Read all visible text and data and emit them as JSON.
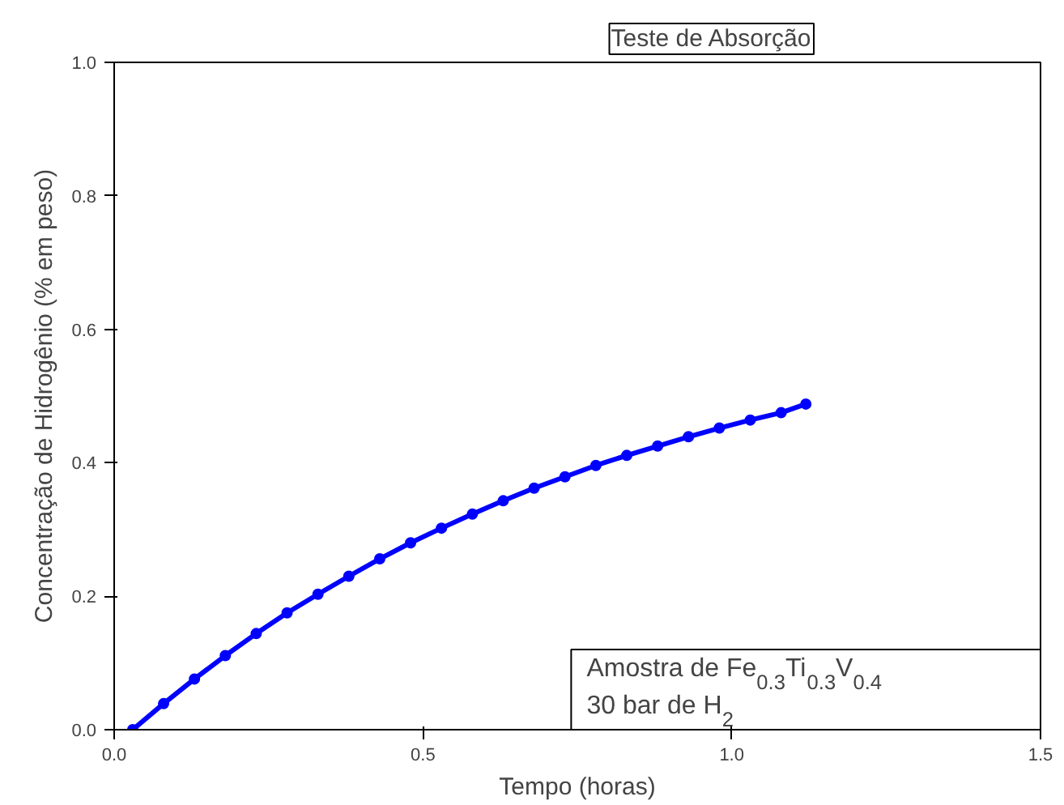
{
  "chart_data": {
    "type": "line",
    "title": "Teste de Absorção",
    "xlabel": "Tempo (horas)",
    "ylabel": "Concentração de Hidrogênio (% em peso)",
    "x": [
      0.03,
      0.08,
      0.13,
      0.18,
      0.23,
      0.28,
      0.33,
      0.38,
      0.43,
      0.48,
      0.53,
      0.58,
      0.63,
      0.68,
      0.73,
      0.78,
      0.83,
      0.88,
      0.93,
      0.98,
      1.03,
      1.08,
      1.12
    ],
    "series": [
      {
        "color": "#0000ff",
        "values": [
          0.0,
          0.039,
          0.076,
          0.111,
          0.144,
          0.175,
          0.203,
          0.23,
          0.256,
          0.28,
          0.302,
          0.323,
          0.343,
          0.362,
          0.379,
          0.396,
          0.411,
          0.425,
          0.439,
          0.452,
          0.464,
          0.475,
          0.488
        ]
      }
    ],
    "xlim": [
      0,
      1.5
    ],
    "xticks": [
      {
        "value": 0,
        "label": "0.0"
      },
      0.5,
      {
        "value": 1,
        "label": "1.0"
      },
      1.5
    ],
    "ylim": [
      0,
      1
    ],
    "yticks": [
      {
        "value": 0,
        "label": "0.0"
      },
      0.2,
      0.4,
      0.6,
      0.8,
      {
        "value": 1,
        "label": "1.0"
      }
    ],
    "marker": "circle",
    "grid": false,
    "annotations": [
      "Amostra de Fe$_{0.3}$Ti$_{0.3}$V$_{0.4}$",
      "30 bar de H$_{2}$"
    ]
  }
}
